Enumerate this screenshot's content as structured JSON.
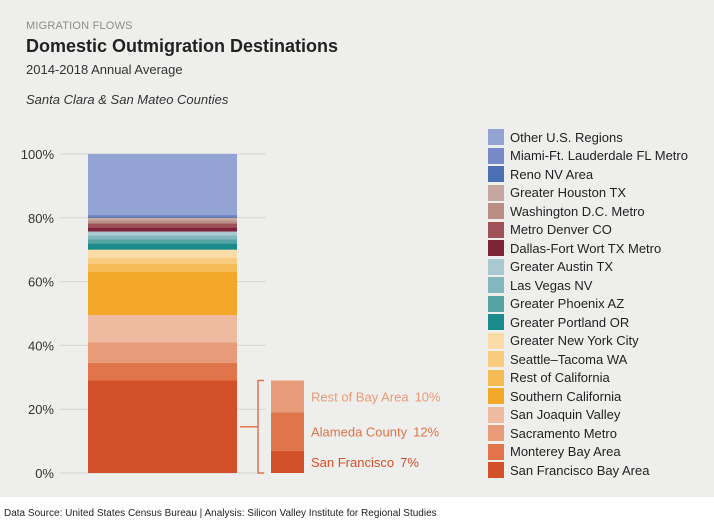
{
  "header": {
    "kicker": "MIGRATION FLOWS",
    "title": "Domestic Outmigration Destinations",
    "subtitle": "2014-2018 Annual Average",
    "region": "Santa Clara & San Mateo Counties"
  },
  "footer": {
    "source": "Data Source: United States Census Bureau | Analysis: Silicon Valley Institute for Regional Studies"
  },
  "chart_data": {
    "type": "bar",
    "stacked": true,
    "ylim": [
      0,
      100
    ],
    "yticks": [
      "0%",
      "20%",
      "40%",
      "60%",
      "80%",
      "100%"
    ],
    "ytick_values": [
      0,
      20,
      40,
      60,
      80,
      100
    ],
    "series": [
      {
        "name": "San Francisco Bay Area",
        "value": 29,
        "color": "#d4502a"
      },
      {
        "name": "Monterey Bay Area",
        "value": 5.5,
        "color": "#e0744a"
      },
      {
        "name": "Sacramento Metro",
        "value": 6.5,
        "color": "#e89b78"
      },
      {
        "name": "San Joaquin Valley",
        "value": 8.5,
        "color": "#efbba0"
      },
      {
        "name": "Southern California",
        "value": 13.5,
        "color": "#f4a829"
      },
      {
        "name": "Rest of California",
        "value": 2.5,
        "color": "#f7bb55"
      },
      {
        "name": "Seattle–Tacoma WA",
        "value": 2,
        "color": "#f9cb7f"
      },
      {
        "name": "Greater New York City",
        "value": 2.5,
        "color": "#fbdba6"
      },
      {
        "name": "Greater Portland OR",
        "value": 2,
        "color": "#1b8a8a"
      },
      {
        "name": "Greater Phoenix AZ",
        "value": 1.2,
        "color": "#56a3a3"
      },
      {
        "name": "Las Vegas NV",
        "value": 1.3,
        "color": "#83b7bf"
      },
      {
        "name": "Greater Austin TX",
        "value": 1.2,
        "color": "#aac8d0"
      },
      {
        "name": "Dallas-Fort Wort TX Metro",
        "value": 1.3,
        "color": "#7e2438"
      },
      {
        "name": "Metro Denver CO",
        "value": 1.2,
        "color": "#9e5156"
      },
      {
        "name": "Washington D.C. Metro",
        "value": 1,
        "color": "#ba8e84"
      },
      {
        "name": "Greater Houston TX",
        "value": 0.8,
        "color": "#c6a79d"
      },
      {
        "name": "Reno NV Area",
        "value": 0.5,
        "color": "#4b6fb5"
      },
      {
        "name": "Miami-Ft. Lauderdale FL Metro",
        "value": 0.5,
        "color": "#7789c8"
      },
      {
        "name": "Other U.S. Regions",
        "value": 19,
        "color": "#92a3d4"
      }
    ],
    "breakout": {
      "segments": [
        {
          "label": "San Francisco",
          "pct": "7%",
          "value": 7,
          "color": "#d4502a"
        },
        {
          "label": "Alameda County",
          "pct": "12%",
          "value": 12,
          "color": "#e0744a"
        },
        {
          "label": "Rest of Bay Area",
          "pct": "10%",
          "value": 10,
          "color": "#e89b78"
        }
      ],
      "bracket_color": "#e0744a"
    }
  }
}
